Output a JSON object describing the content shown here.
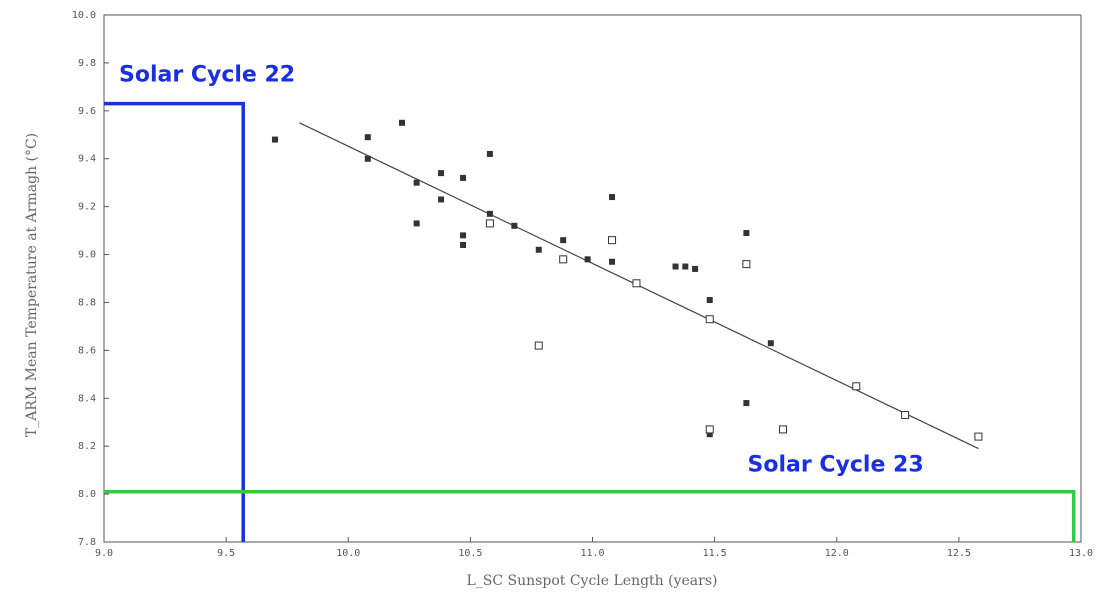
{
  "chart_data": {
    "type": "scatter",
    "xlabel": "L_SC Sunspot Cycle Length (years)",
    "ylabel": "T_ARM Mean Temperature at Armagh (°C)",
    "xlim": [
      9.0,
      13.0
    ],
    "ylim": [
      7.8,
      10.0
    ],
    "x_ticks": [
      "9.0",
      "9.5",
      "10.0",
      "10.5",
      "11.0",
      "11.5",
      "12.0",
      "12.5",
      "13.0"
    ],
    "y_ticks": [
      "7.8",
      "8.0",
      "8.2",
      "8.4",
      "8.6",
      "8.8",
      "9.0",
      "9.2",
      "9.4",
      "9.6",
      "9.8",
      "10.0"
    ],
    "grid": false,
    "series": [
      {
        "marker": "filled-square",
        "color": "#333333",
        "points": [
          [
            9.7,
            9.48
          ],
          [
            10.08,
            9.49
          ],
          [
            10.08,
            9.4
          ],
          [
            10.22,
            9.55
          ],
          [
            10.28,
            9.3
          ],
          [
            10.28,
            9.13
          ],
          [
            10.38,
            9.34
          ],
          [
            10.38,
            9.23
          ],
          [
            10.47,
            9.32
          ],
          [
            10.47,
            9.08
          ],
          [
            10.47,
            9.04
          ],
          [
            10.58,
            9.42
          ],
          [
            10.58,
            9.17
          ],
          [
            10.68,
            9.12
          ],
          [
            10.78,
            9.02
          ],
          [
            10.88,
            9.06
          ],
          [
            10.98,
            8.98
          ],
          [
            11.08,
            9.24
          ],
          [
            11.08,
            8.97
          ],
          [
            11.34,
            8.95
          ],
          [
            11.38,
            8.95
          ],
          [
            11.42,
            8.94
          ],
          [
            11.48,
            8.81
          ],
          [
            11.48,
            8.25
          ],
          [
            11.63,
            9.09
          ],
          [
            11.63,
            8.38
          ],
          [
            11.73,
            8.63
          ]
        ]
      },
      {
        "marker": "open-square",
        "color": "#333333",
        "points": [
          [
            10.58,
            9.13
          ],
          [
            10.78,
            8.62
          ],
          [
            10.88,
            8.98
          ],
          [
            11.08,
            9.06
          ],
          [
            11.18,
            8.88
          ],
          [
            11.48,
            8.73
          ],
          [
            11.48,
            8.27
          ],
          [
            11.63,
            8.96
          ],
          [
            11.78,
            8.27
          ],
          [
            12.08,
            8.45
          ],
          [
            12.28,
            8.33
          ],
          [
            12.58,
            8.24
          ]
        ]
      }
    ],
    "trend_line": {
      "from": [
        9.8,
        9.55
      ],
      "to": [
        12.58,
        8.19
      ]
    },
    "annotations": [
      {
        "text": "Solar Cycle 22",
        "color": "#1a2fe0",
        "x": 9.57,
        "y": 9.63
      },
      {
        "text": "Solar Cycle 23",
        "color": "#1a2fe0",
        "x": 12.97,
        "y": 8.01
      }
    ],
    "marker_lines": [
      {
        "cycle": "Solar Cycle 22",
        "color": "#1a2fe0",
        "cycle_length": 9.57,
        "temperature": 9.63
      },
      {
        "cycle": "Solar Cycle 23",
        "color": "#2ecc40",
        "cycle_length": 12.97,
        "temperature": 8.01
      }
    ]
  }
}
